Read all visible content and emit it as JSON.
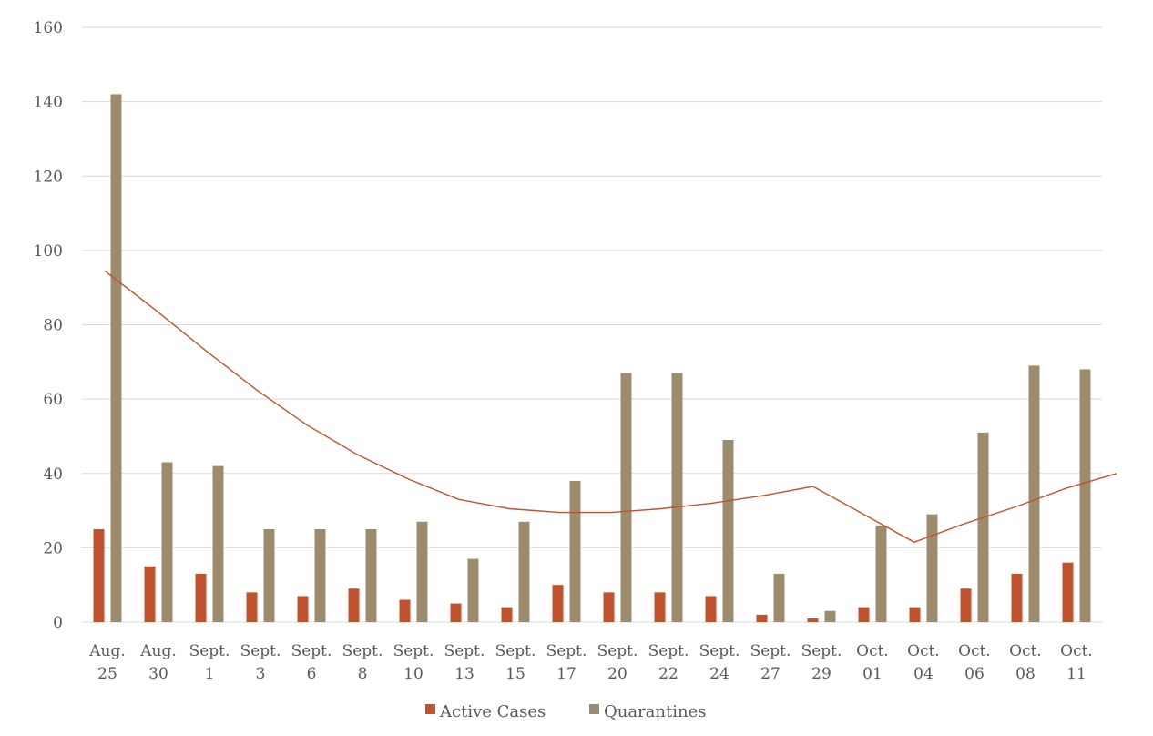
{
  "chart_data": {
    "type": "bar",
    "categories": [
      [
        "Aug.",
        "25"
      ],
      [
        "Aug.",
        "30"
      ],
      [
        "Sept.",
        "1"
      ],
      [
        "Sept.",
        "3"
      ],
      [
        "Sept.",
        "6"
      ],
      [
        "Sept.",
        "8"
      ],
      [
        "Sept.",
        "10"
      ],
      [
        "Sept.",
        "13"
      ],
      [
        "Sept.",
        "15"
      ],
      [
        "Sept.",
        "17"
      ],
      [
        "Sept.",
        "20"
      ],
      [
        "Sept.",
        "22"
      ],
      [
        "Sept.",
        "24"
      ],
      [
        "Sept.",
        "27"
      ],
      [
        "Sept.",
        "29"
      ],
      [
        "Oct.",
        "01"
      ],
      [
        "Oct.",
        "04"
      ],
      [
        "Oct.",
        "06"
      ],
      [
        "Oct.",
        "08"
      ],
      [
        "Oct.",
        "11"
      ]
    ],
    "series": [
      {
        "name": "Active Cases",
        "color": "#c0532d",
        "values": [
          25,
          15,
          13,
          8,
          7,
          9,
          6,
          5,
          4,
          10,
          8,
          8,
          7,
          2,
          1,
          4,
          4,
          9,
          13,
          16
        ]
      },
      {
        "name": "Quarantines",
        "color": "#9c8b6c",
        "values": [
          142,
          43,
          42,
          25,
          25,
          25,
          27,
          17,
          27,
          38,
          67,
          67,
          49,
          13,
          3,
          26,
          29,
          51,
          69,
          68
        ]
      }
    ],
    "trendline": {
      "color": "#c0532d",
      "values": [
        94.5,
        84,
        73,
        62.5,
        53,
        45,
        38.5,
        33,
        30.5,
        29.5,
        29.5,
        30.5,
        32,
        34,
        36.5,
        29,
        21.5,
        26.5,
        31,
        36,
        40
      ]
    },
    "title": "",
    "xlabel": "",
    "ylabel": "",
    "ylim": [
      0,
      160
    ],
    "yticks": [
      0,
      20,
      40,
      60,
      80,
      100,
      120,
      140,
      160
    ],
    "grid": true,
    "legend": "bottom"
  }
}
